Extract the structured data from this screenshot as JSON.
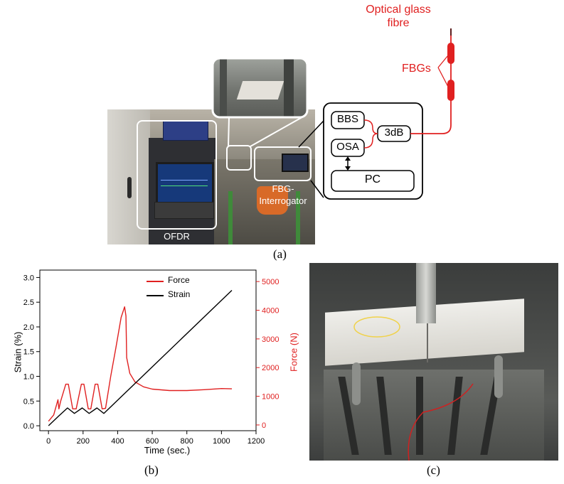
{
  "panel_a": {
    "caption": "(a)",
    "labels": {
      "ofdr": "OFDR",
      "fbg_interrogator_line1": "FBG-",
      "fbg_interrogator_line2": "Interrogator",
      "optical_fibre_line1": "Optical glass",
      "optical_fibre_line2": "fibre",
      "fbgs": "FBGs"
    },
    "diagram": {
      "bbs": "BBS",
      "osa": "OSA",
      "coupler": "3dB",
      "pc": "PC"
    },
    "colors": {
      "fibre": "#e02020"
    }
  },
  "panel_b": {
    "caption": "(b)"
  },
  "panel_c": {
    "caption": "(c)"
  },
  "chart_data": {
    "type": "line",
    "xlabel": "Time (sec.)",
    "ylabel": "Strain (%)",
    "y2label": "Force (N)",
    "xlim": [
      -50,
      1200
    ],
    "ylim": [
      -0.1,
      3.15
    ],
    "y2lim": [
      -200,
      5400
    ],
    "x_ticks": [
      0,
      200,
      400,
      600,
      800,
      1000,
      1200
    ],
    "y_ticks": [
      0.0,
      0.5,
      1.0,
      1.5,
      2.0,
      2.5,
      3.0
    ],
    "y_tick_labels": [
      "0.0",
      "0.5",
      "1.0",
      "1.5",
      "2.0",
      "2.5",
      "3.0"
    ],
    "y2_ticks": [
      0,
      1000,
      2000,
      3000,
      4000,
      5000
    ],
    "legend_position": "top-center",
    "series": [
      {
        "name": "Force",
        "axis": "right",
        "color": "#e02020",
        "x": [
          0,
          30,
          55,
          60,
          70,
          100,
          115,
          140,
          160,
          190,
          205,
          230,
          245,
          270,
          285,
          310,
          330,
          360,
          390,
          420,
          440,
          448,
          452,
          470,
          500,
          550,
          600,
          700,
          800,
          900,
          1000,
          1060
        ],
        "y": [
          130,
          350,
          880,
          560,
          820,
          1420,
          1420,
          560,
          560,
          1420,
          1420,
          560,
          560,
          1420,
          1420,
          560,
          580,
          1700,
          2700,
          3750,
          4120,
          3800,
          2350,
          1800,
          1500,
          1330,
          1250,
          1200,
          1200,
          1230,
          1270,
          1260
        ]
      },
      {
        "name": "Strain",
        "axis": "left",
        "color": "#000000",
        "x": [
          0,
          60,
          110,
          150,
          195,
          235,
          280,
          320,
          1060
        ],
        "y": [
          0.0,
          0.2,
          0.36,
          0.25,
          0.36,
          0.25,
          0.36,
          0.25,
          2.74
        ]
      }
    ]
  }
}
